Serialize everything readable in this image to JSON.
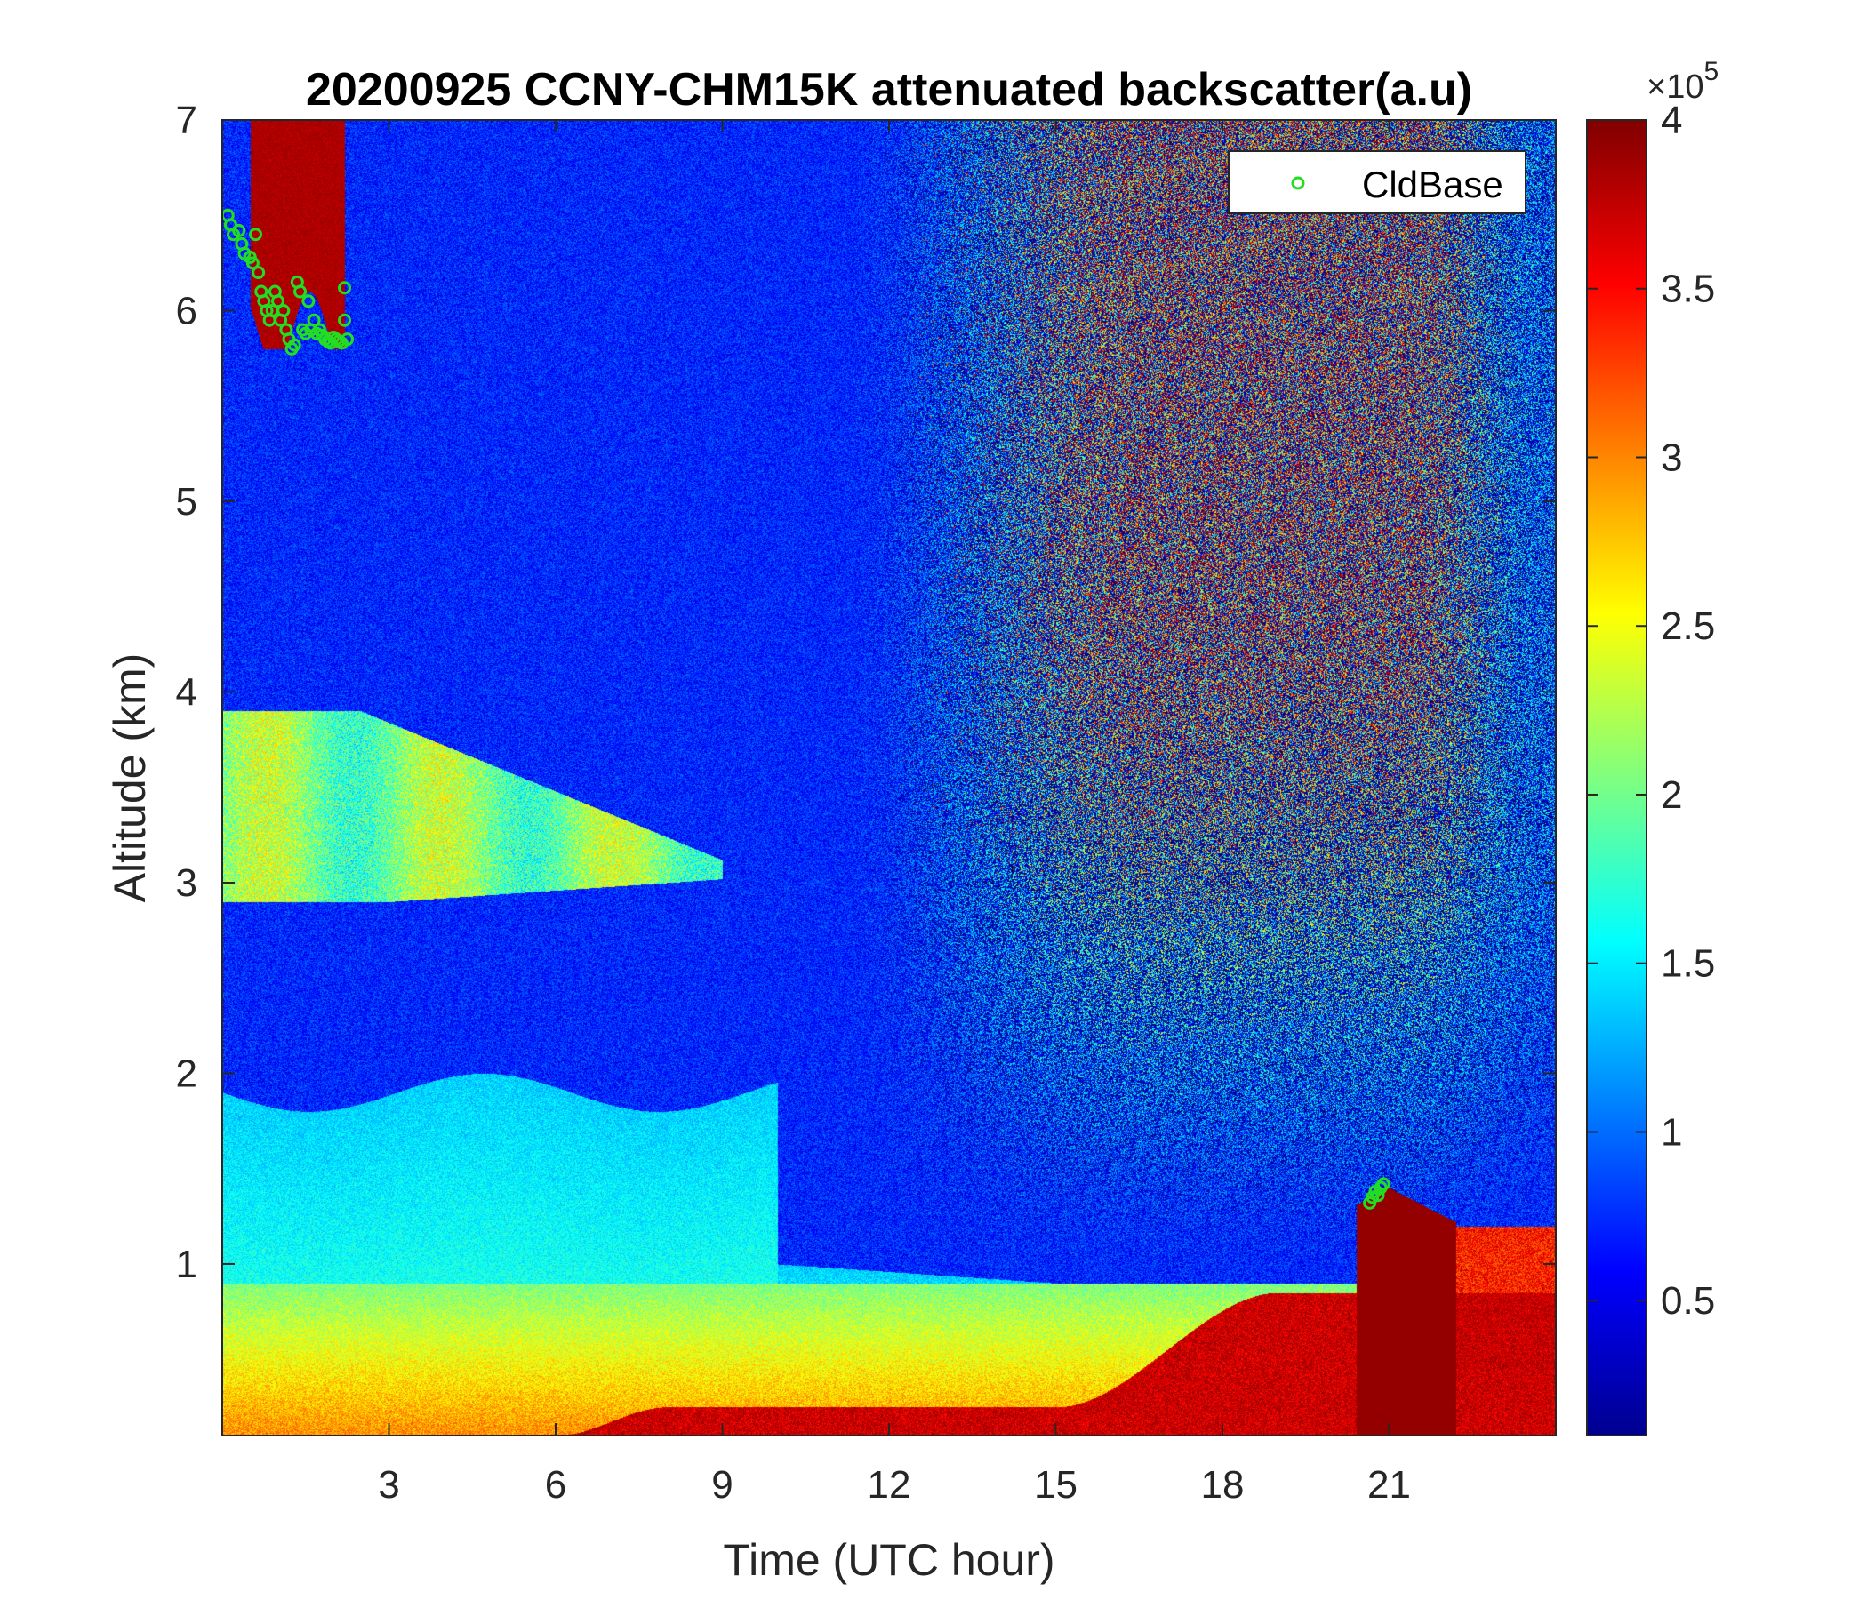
{
  "chart_data": {
    "type": "heatmap",
    "title": "20200925 CCNY-CHM15K attenuated backscatter(a.u)",
    "xlabel": "Time (UTC hour)",
    "ylabel": "Altitude (km)",
    "xlim": [
      0,
      24
    ],
    "ylim": [
      0.1,
      7
    ],
    "xticks": [
      3,
      6,
      9,
      12,
      15,
      18,
      21
    ],
    "xtick_labels": [
      "3",
      "6",
      "9",
      "12",
      "15",
      "18",
      "21"
    ],
    "yticks": [
      1,
      2,
      3,
      4,
      5,
      6,
      7
    ],
    "ytick_labels": [
      "1",
      "2",
      "3",
      "4",
      "5",
      "6",
      "7"
    ],
    "colormap": "jet",
    "colorbar": {
      "range": [
        0.1,
        4
      ],
      "ticks": [
        0.5,
        1,
        1.5,
        2,
        2.5,
        3,
        3.5,
        4
      ],
      "tick_labels": [
        "0.5",
        "1",
        "1.5",
        "2",
        "2.5",
        "3",
        "3.5",
        "4"
      ],
      "multiplier_prefix": "×10",
      "multiplier_exponent": "5"
    },
    "legend": {
      "placement": "top-right",
      "entries": [
        "CldBase"
      ]
    },
    "series": [
      {
        "name": "CldBase",
        "marker": "circle-open",
        "color": "#22dd22",
        "x": [
          0.1,
          0.15,
          0.2,
          0.3,
          0.35,
          0.4,
          0.5,
          0.55,
          0.6,
          0.65,
          0.7,
          0.75,
          0.8,
          0.85,
          0.9,
          0.95,
          1.0,
          1.05,
          1.1,
          1.15,
          1.2,
          1.25,
          1.3,
          1.35,
          1.4,
          1.45,
          1.5,
          1.55,
          1.6,
          1.65,
          1.7,
          1.75,
          1.8,
          1.85,
          1.9,
          1.95,
          2.0,
          2.05,
          2.1,
          2.15,
          2.2,
          2.2,
          2.25,
          20.65,
          20.7,
          20.75,
          20.8,
          20.85,
          20.9
        ],
        "y": [
          6.5,
          6.45,
          6.4,
          6.42,
          6.35,
          6.3,
          6.28,
          6.25,
          6.4,
          6.2,
          6.1,
          6.05,
          6.0,
          5.95,
          6.0,
          6.1,
          6.05,
          5.95,
          6.0,
          5.9,
          5.85,
          5.8,
          5.82,
          6.15,
          6.1,
          5.9,
          5.88,
          6.05,
          5.9,
          5.95,
          5.88,
          5.9,
          5.87,
          5.85,
          5.84,
          5.83,
          5.86,
          5.85,
          5.84,
          5.83,
          6.12,
          5.95,
          5.85,
          1.32,
          1.35,
          1.38,
          1.36,
          1.4,
          1.42
        ]
      }
    ]
  }
}
